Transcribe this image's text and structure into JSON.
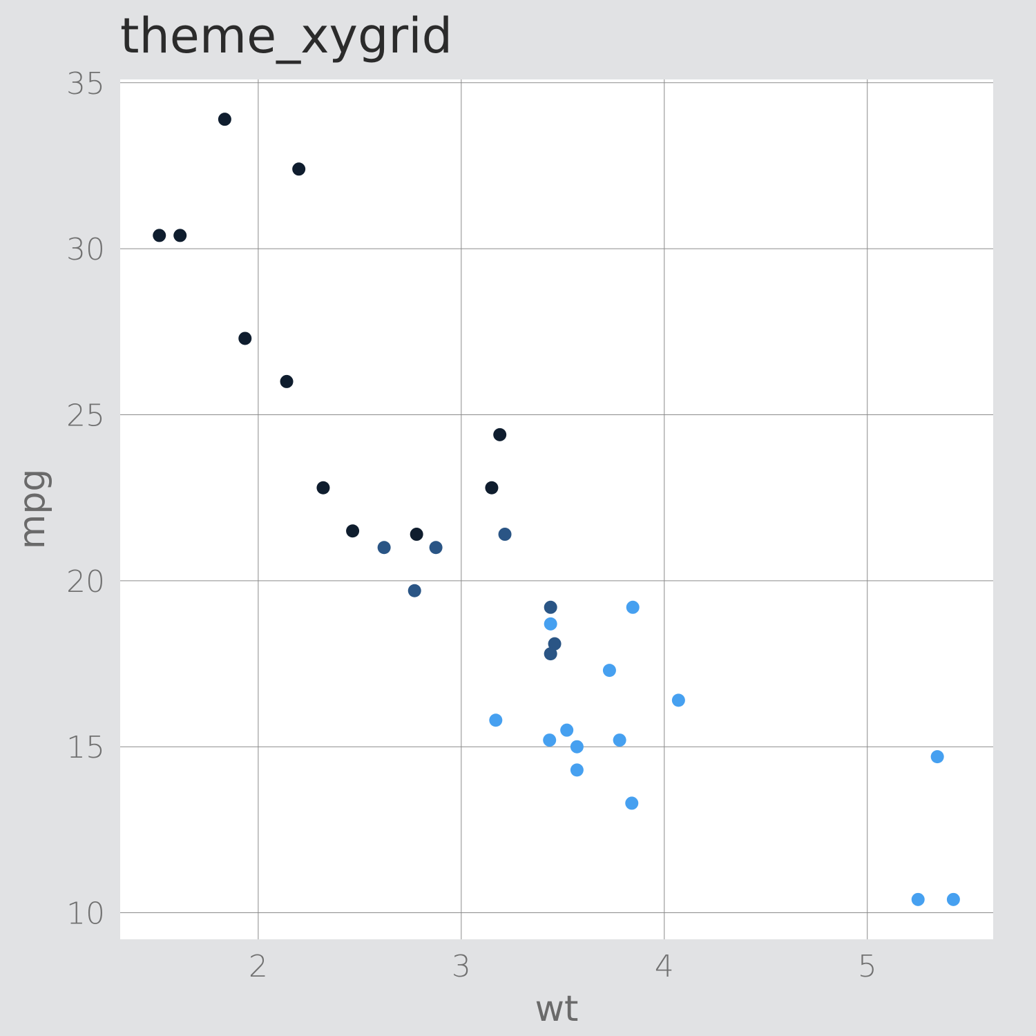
{
  "chart_data": {
    "type": "scatter",
    "title": "theme_xygrid",
    "xlabel": "wt",
    "ylabel": "mpg",
    "xlim": [
      1.32,
      5.62
    ],
    "ylim": [
      9.2,
      35.1
    ],
    "x_ticks": [
      2,
      3,
      4,
      5
    ],
    "y_ticks": [
      10,
      15,
      20,
      25,
      30,
      35
    ],
    "grid": true,
    "legend": "none",
    "group_colors": {
      "4": "#0f1d2e",
      "6": "#2a5585",
      "8": "#46a0f0"
    },
    "points": [
      {
        "x": 2.62,
        "y": 21.0,
        "g": "6"
      },
      {
        "x": 2.875,
        "y": 21.0,
        "g": "6"
      },
      {
        "x": 2.32,
        "y": 22.8,
        "g": "4"
      },
      {
        "x": 3.215,
        "y": 21.4,
        "g": "6"
      },
      {
        "x": 3.44,
        "y": 18.7,
        "g": "8"
      },
      {
        "x": 3.46,
        "y": 18.1,
        "g": "6"
      },
      {
        "x": 3.57,
        "y": 14.3,
        "g": "8"
      },
      {
        "x": 3.19,
        "y": 24.4,
        "g": "4"
      },
      {
        "x": 3.15,
        "y": 22.8,
        "g": "4"
      },
      {
        "x": 3.44,
        "y": 19.2,
        "g": "6"
      },
      {
        "x": 3.44,
        "y": 17.8,
        "g": "6"
      },
      {
        "x": 4.07,
        "y": 16.4,
        "g": "8"
      },
      {
        "x": 3.73,
        "y": 17.3,
        "g": "8"
      },
      {
        "x": 3.78,
        "y": 15.2,
        "g": "8"
      },
      {
        "x": 5.25,
        "y": 10.4,
        "g": "8"
      },
      {
        "x": 5.424,
        "y": 10.4,
        "g": "8"
      },
      {
        "x": 5.345,
        "y": 14.7,
        "g": "8"
      },
      {
        "x": 2.2,
        "y": 32.4,
        "g": "4"
      },
      {
        "x": 1.615,
        "y": 30.4,
        "g": "4"
      },
      {
        "x": 1.835,
        "y": 33.9,
        "g": "4"
      },
      {
        "x": 2.465,
        "y": 21.5,
        "g": "4"
      },
      {
        "x": 3.52,
        "y": 15.5,
        "g": "8"
      },
      {
        "x": 3.435,
        "y": 15.2,
        "g": "8"
      },
      {
        "x": 3.84,
        "y": 13.3,
        "g": "8"
      },
      {
        "x": 3.845,
        "y": 19.2,
        "g": "8"
      },
      {
        "x": 1.935,
        "y": 27.3,
        "g": "4"
      },
      {
        "x": 2.14,
        "y": 26.0,
        "g": "4"
      },
      {
        "x": 1.513,
        "y": 30.4,
        "g": "4"
      },
      {
        "x": 3.17,
        "y": 15.8,
        "g": "8"
      },
      {
        "x": 2.77,
        "y": 19.7,
        "g": "6"
      },
      {
        "x": 3.57,
        "y": 15.0,
        "g": "8"
      },
      {
        "x": 2.78,
        "y": 21.4,
        "g": "4"
      }
    ]
  }
}
